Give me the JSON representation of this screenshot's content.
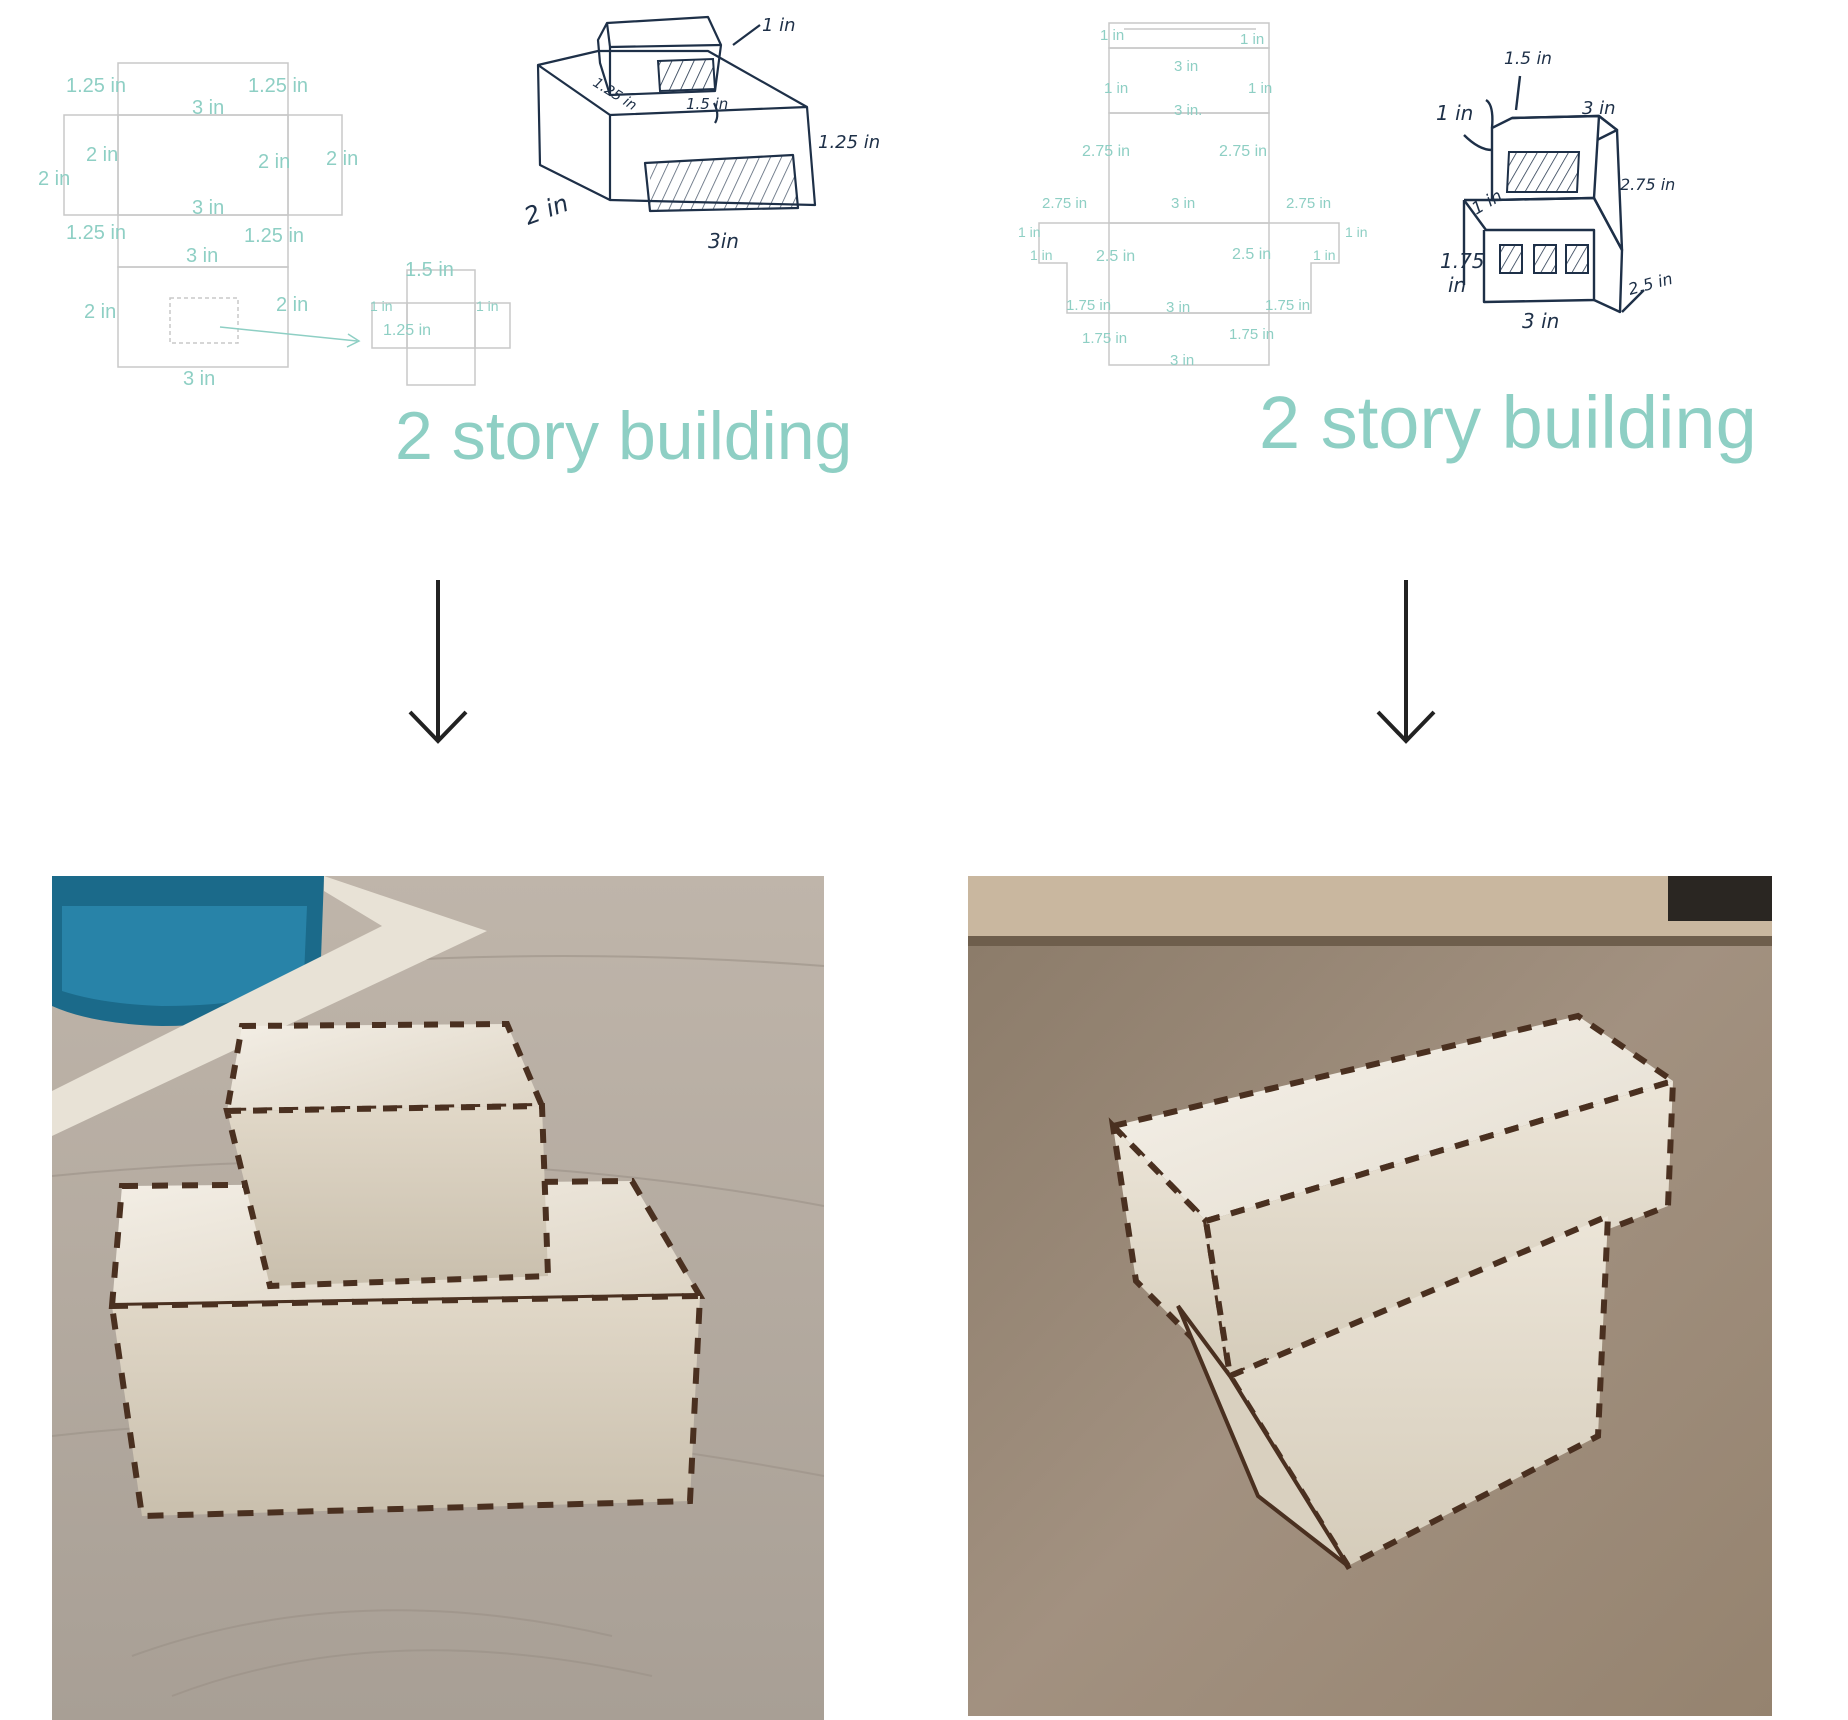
{
  "left": {
    "title": "2 story building",
    "net_labels": {
      "top_left": "1.25 in",
      "top_right": "1.25 in",
      "top_width": "3 in",
      "side_left_outer": "2 in",
      "side_left_inner": "2 in",
      "side_right_inner": "2 in",
      "side_right_outer": "2 in",
      "mid_width": "3 in",
      "lower_left": "1.25 in",
      "lower_right": "1.25 in",
      "lower_width": "3 in",
      "bottom_left": "2 in",
      "bottom_right": "2 in",
      "bottom_width": "3 in",
      "small_top": "1.5 in",
      "small_left": "1 in",
      "small_right": "1 in",
      "small_center": "1.25 in"
    },
    "sketch_labels": {
      "roof_height": "1 in",
      "roof_depth": "1.25 in",
      "roof_width": "1.5 in",
      "body_height": "1.25 in",
      "body_depth": "2 in",
      "body_width": "3in"
    }
  },
  "right": {
    "title": "2 story building",
    "net_labels": {
      "top_left": "1 in",
      "top_right": "1 in",
      "top_width": "3 in",
      "upper_left": "1 in",
      "upper_right": "1 in",
      "upper_width": "3 in.",
      "mid_left": "2.75 in",
      "mid_right": "2.75 in",
      "wing_left": "2.75 in",
      "wing_center": "3 in",
      "wing_right": "2.75 in",
      "wing_left_side": "1 in",
      "wing_right_side": "1 in",
      "wing_left_step": "1 in",
      "wing_right_step": "1 in",
      "low_left": "2.5 in",
      "low_right": "2.5 in",
      "base_left": "1.75 in",
      "base_center": "3 in",
      "base_right": "1.75 in",
      "foot_left": "1.75 in",
      "foot_right": "1.75 in",
      "foot_width": "3 in"
    },
    "sketch_labels": {
      "top_depth": "1.5 in",
      "top_left_height": "1 in",
      "top_width": "3 in",
      "right_height": "2.75 in",
      "step_height": "1 in",
      "lower_height_a": "1.75",
      "lower_height_b": "in",
      "lower_depth": "2.5 in",
      "lower_width": "3 in"
    }
  },
  "colors": {
    "dimension_teal": "#8ecfc4",
    "sketch_ink": "#1e3048",
    "arrow": "#222222"
  }
}
